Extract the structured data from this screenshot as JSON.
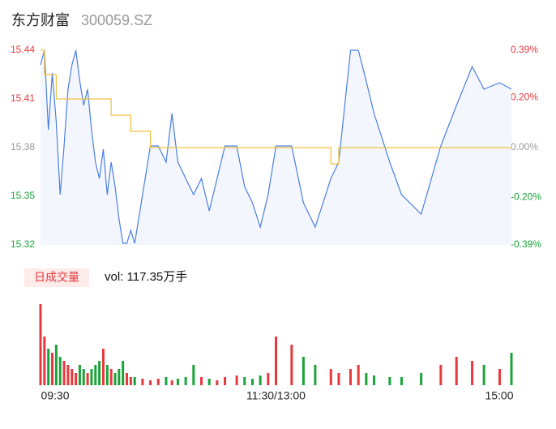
{
  "header": {
    "title": "东方财富",
    "code": "300059.SZ"
  },
  "chart_data": [
    {
      "type": "line",
      "x": [
        0,
        2,
        4,
        6,
        8,
        10,
        12,
        14,
        16,
        18,
        20,
        22,
        24,
        26,
        28,
        30,
        32,
        34,
        36,
        38,
        40,
        42,
        44,
        46,
        48,
        52,
        56,
        60,
        64,
        67,
        70,
        74,
        78,
        82,
        86,
        90,
        94,
        100,
        104,
        108,
        112,
        116,
        120,
        128,
        134,
        140,
        148,
        152,
        158,
        162,
        166,
        170,
        178,
        184,
        194,
        204,
        212,
        220,
        226,
        234,
        240
      ],
      "series": [
        {
          "name": "price",
          "color": "#4a7fe0",
          "values": [
            15.431,
            15.44,
            15.391,
            15.426,
            15.396,
            15.351,
            15.381,
            15.416,
            15.431,
            15.44,
            15.421,
            15.406,
            15.416,
            15.391,
            15.371,
            15.361,
            15.379,
            15.351,
            15.371,
            15.356,
            15.336,
            15.321,
            15.321,
            15.329,
            15.321,
            15.351,
            15.381,
            15.381,
            15.371,
            15.401,
            15.371,
            15.361,
            15.351,
            15.361,
            15.341,
            15.361,
            15.381,
            15.381,
            15.356,
            15.346,
            15.331,
            15.351,
            15.381,
            15.381,
            15.346,
            15.331,
            15.361,
            15.371,
            15.44,
            15.44,
            15.421,
            15.401,
            15.371,
            15.351,
            15.339,
            15.381,
            15.406,
            15.43,
            15.416,
            15.42,
            15.416
          ]
        },
        {
          "name": "average",
          "color": "#f2c040",
          "values": [
            15.44,
            15.425,
            15.425,
            15.425,
            15.41,
            15.41,
            15.41,
            15.41,
            15.41,
            15.41,
            15.41,
            15.41,
            15.41,
            15.41,
            15.41,
            15.41,
            15.41,
            15.41,
            15.4,
            15.4,
            15.4,
            15.4,
            15.4,
            15.39,
            15.39,
            15.39,
            15.38,
            15.38,
            15.38,
            15.38,
            15.38,
            15.38,
            15.38,
            15.38,
            15.38,
            15.38,
            15.38,
            15.38,
            15.38,
            15.38,
            15.38,
            15.38,
            15.38,
            15.38,
            15.38,
            15.38,
            15.37,
            15.38,
            15.38,
            15.38,
            15.38,
            15.38,
            15.38,
            15.38,
            15.38,
            15.38,
            15.38,
            15.38,
            15.38,
            15.38,
            15.38
          ]
        }
      ],
      "xlim": [
        0,
        240
      ],
      "ylim": [
        15.32,
        15.44
      ],
      "yticks": [
        15.44,
        15.41,
        15.38,
        15.35,
        15.32
      ],
      "y2lim": [
        -0.39,
        0.39
      ],
      "y2ticks": [
        {
          "value": 0.39,
          "label": "0.39%"
        },
        {
          "value": 0.2,
          "label": "0.20%"
        },
        {
          "value": 0,
          "label": "0.00%"
        },
        {
          "value": -0.2,
          "label": "-0.20%"
        },
        {
          "value": -0.39,
          "label": "-0.39%"
        }
      ]
    },
    {
      "type": "bar",
      "button": "日成交量",
      "summary": "vol: 117.35万手",
      "values": [
        2.0,
        1.2,
        0.9,
        0.8,
        1.0,
        0.7,
        0.6,
        0.5,
        0.4,
        0.3,
        0.5,
        0.4,
        0.3,
        0.4,
        0.5,
        0.6,
        0.9,
        0.5,
        0.4,
        0.3,
        0.4,
        0.6,
        0.3,
        0.2,
        0.2,
        0.16,
        0.12,
        0.16,
        0.2,
        0.12,
        0.16,
        0.2,
        0.5,
        0.2,
        0.16,
        0.12,
        0.2,
        0.24,
        0.2,
        0.16,
        0.24,
        0.3,
        1.2,
        1.0,
        0.7,
        0.5,
        0.4,
        0.3,
        0.4,
        0.5,
        0.3,
        0.24,
        0.2,
        0.2,
        0.3,
        0.5,
        0.7,
        0.6,
        0.5,
        0.4,
        0.8
      ],
      "up_color": "#e8383d",
      "down_color": "#1aa33a",
      "ylim": [
        0,
        2.1
      ],
      "xticks": [
        {
          "value": 0,
          "label": "09:30"
        },
        {
          "value": 120,
          "label": "11:30/13:00"
        },
        {
          "value": 240,
          "label": "15:00"
        }
      ]
    }
  ]
}
